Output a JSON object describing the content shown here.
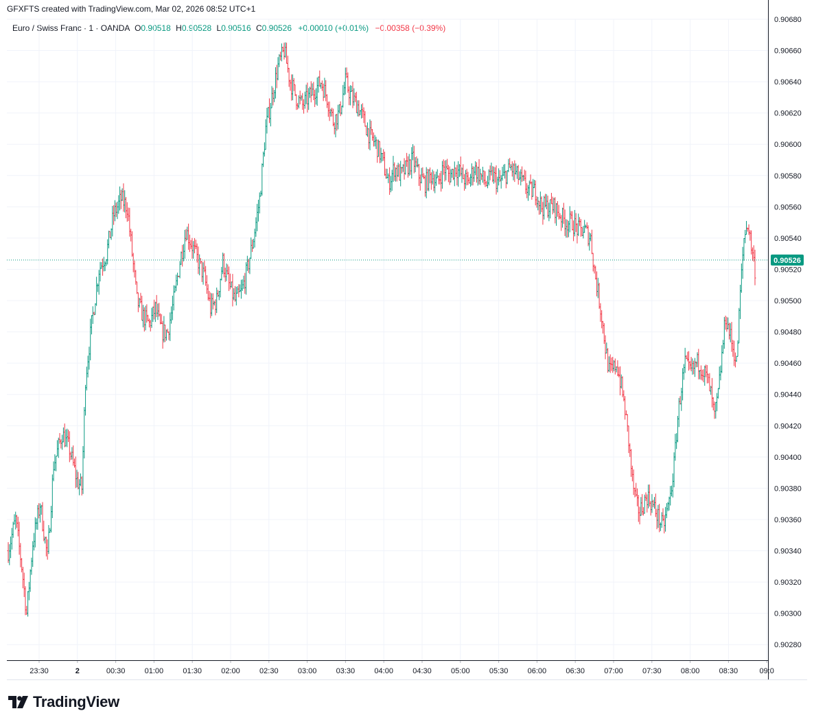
{
  "caption": "GFXFTS created with TradingView.com, Mar 02, 2026 08:52 UTC+1",
  "legend": {
    "symbol": "Euro / Swiss Franc · 1 · OANDA",
    "open_label": "O",
    "open": "0.90518",
    "high_label": "H",
    "high": "0.90528",
    "low_label": "L",
    "low": "0.90516",
    "close_label": "C",
    "close": "0.90526",
    "change": "+0.00010 (+0.01%)",
    "session_change": "−0.00358 (−0.39%)"
  },
  "brand": {
    "name": "TradingView"
  },
  "colors": {
    "up": "#089981",
    "down": "#f23645",
    "grid": "#f0f3fa",
    "axis": "#131722",
    "last": "#089981"
  },
  "chart_data": {
    "type": "ohlc",
    "title": "",
    "xlabel": "",
    "ylabel": "",
    "ylim": [
      0.9027,
      0.9068
    ],
    "y_ticks": [
      "0.90280",
      "0.90300",
      "0.90320",
      "0.90340",
      "0.90360",
      "0.90380",
      "0.90400",
      "0.90420",
      "0.90440",
      "0.90460",
      "0.90480",
      "0.90500",
      "0.90520",
      "0.90540",
      "0.90560",
      "0.90580",
      "0.90600",
      "0.90620",
      "0.90640",
      "0.90660",
      "0.90680"
    ],
    "x_ticks": [
      "23:30",
      "2",
      "00:30",
      "01:00",
      "01:30",
      "02:00",
      "02:30",
      "03:00",
      "03:30",
      "04:00",
      "04:30",
      "05:00",
      "05:30",
      "06:00",
      "06:30",
      "07:00",
      "07:30",
      "08:00",
      "08:30",
      "09:0"
    ],
    "last_price": "0.90526",
    "grid": true,
    "path": [
      [
        0,
        0.9034
      ],
      [
        6,
        0.9036
      ],
      [
        11,
        0.9033
      ],
      [
        15,
        0.903
      ],
      [
        20,
        0.90345
      ],
      [
        26,
        0.9037
      ],
      [
        32,
        0.90335
      ],
      [
        37,
        0.90395
      ],
      [
        44,
        0.90415
      ],
      [
        50,
        0.90405
      ],
      [
        56,
        0.90385
      ],
      [
        60,
        0.9038
      ],
      [
        63,
        0.9045
      ],
      [
        68,
        0.90485
      ],
      [
        74,
        0.9052
      ],
      [
        80,
        0.9053
      ],
      [
        86,
        0.90555
      ],
      [
        92,
        0.90565
      ],
      [
        97,
        0.9056
      ],
      [
        101,
        0.9053
      ],
      [
        105,
        0.905
      ],
      [
        110,
        0.9049
      ],
      [
        115,
        0.90485
      ],
      [
        120,
        0.90495
      ],
      [
        125,
        0.9048
      ],
      [
        130,
        0.9048
      ],
      [
        135,
        0.905
      ],
      [
        140,
        0.90525
      ],
      [
        145,
        0.90545
      ],
      [
        150,
        0.90535
      ],
      [
        155,
        0.90525
      ],
      [
        160,
        0.90515
      ],
      [
        165,
        0.90495
      ],
      [
        170,
        0.905
      ],
      [
        175,
        0.90525
      ],
      [
        180,
        0.9051
      ],
      [
        185,
        0.905
      ],
      [
        190,
        0.90505
      ],
      [
        195,
        0.9052
      ],
      [
        200,
        0.9054
      ],
      [
        205,
        0.90565
      ],
      [
        210,
        0.9061
      ],
      [
        215,
        0.9063
      ],
      [
        220,
        0.9065
      ],
      [
        225,
        0.9066
      ],
      [
        230,
        0.9064
      ],
      [
        235,
        0.9063
      ],
      [
        240,
        0.90625
      ],
      [
        245,
        0.9063
      ],
      [
        250,
        0.90635
      ],
      [
        255,
        0.9064
      ],
      [
        260,
        0.9063
      ],
      [
        265,
        0.90615
      ],
      [
        270,
        0.9062
      ],
      [
        275,
        0.9064
      ],
      [
        280,
        0.9063
      ],
      [
        285,
        0.90625
      ],
      [
        290,
        0.90615
      ],
      [
        295,
        0.90605
      ],
      [
        300,
        0.906
      ],
      [
        305,
        0.9059
      ],
      [
        310,
        0.90575
      ],
      [
        315,
        0.90585
      ],
      [
        320,
        0.9058
      ],
      [
        325,
        0.90585
      ],
      [
        330,
        0.9059
      ],
      [
        335,
        0.9058
      ],
      [
        340,
        0.90575
      ],
      [
        345,
        0.9058
      ],
      [
        350,
        0.90575
      ],
      [
        355,
        0.90585
      ],
      [
        360,
        0.9058
      ],
      [
        365,
        0.90585
      ],
      [
        370,
        0.9058
      ],
      [
        375,
        0.90575
      ],
      [
        380,
        0.90585
      ],
      [
        385,
        0.9058
      ],
      [
        390,
        0.90575
      ],
      [
        395,
        0.9058
      ],
      [
        400,
        0.90575
      ],
      [
        405,
        0.9058
      ],
      [
        410,
        0.90585
      ],
      [
        415,
        0.9058
      ],
      [
        420,
        0.90575
      ],
      [
        425,
        0.9057
      ],
      [
        430,
        0.9057
      ],
      [
        435,
        0.9056
      ],
      [
        440,
        0.9056
      ],
      [
        445,
        0.9056
      ],
      [
        450,
        0.90555
      ],
      [
        455,
        0.9055
      ],
      [
        460,
        0.9055
      ],
      [
        465,
        0.90545
      ],
      [
        470,
        0.90545
      ],
      [
        475,
        0.9054
      ],
      [
        478,
        0.9052
      ],
      [
        481,
        0.90505
      ],
      [
        484,
        0.9049
      ],
      [
        487,
        0.9047
      ],
      [
        490,
        0.90455
      ],
      [
        493,
        0.90455
      ],
      [
        496,
        0.9046
      ],
      [
        500,
        0.90445
      ],
      [
        503,
        0.9043
      ],
      [
        506,
        0.9041
      ],
      [
        509,
        0.90385
      ],
      [
        512,
        0.9037
      ],
      [
        515,
        0.90365
      ],
      [
        518,
        0.9037
      ],
      [
        521,
        0.90375
      ],
      [
        525,
        0.9037
      ],
      [
        528,
        0.90365
      ],
      [
        531,
        0.9036
      ],
      [
        534,
        0.90355
      ],
      [
        537,
        0.90365
      ],
      [
        540,
        0.90375
      ],
      [
        543,
        0.90395
      ],
      [
        546,
        0.90425
      ],
      [
        549,
        0.90445
      ],
      [
        552,
        0.9046
      ],
      [
        555,
        0.90455
      ],
      [
        558,
        0.90455
      ],
      [
        561,
        0.9046
      ],
      [
        564,
        0.9046
      ],
      [
        567,
        0.90455
      ],
      [
        570,
        0.9045
      ],
      [
        573,
        0.9044
      ],
      [
        576,
        0.90425
      ],
      [
        579,
        0.9044
      ],
      [
        582,
        0.90465
      ],
      [
        585,
        0.9049
      ],
      [
        588,
        0.9048
      ],
      [
        591,
        0.9047
      ],
      [
        594,
        0.9046
      ],
      [
        597,
        0.90505
      ],
      [
        600,
        0.9054
      ],
      [
        603,
        0.9055
      ],
      [
        606,
        0.90535
      ],
      [
        609,
        0.9052
      ]
    ]
  }
}
